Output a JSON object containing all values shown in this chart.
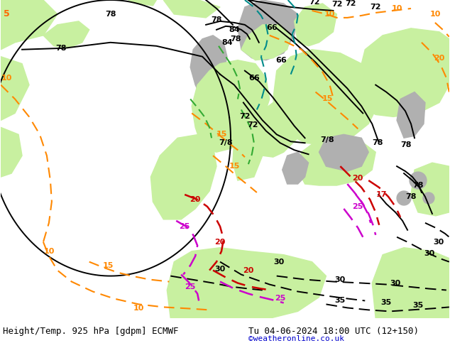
{
  "title_left": "Height/Temp. 925 hPa [gdpm] ECMWF",
  "title_right": "Tu 04-06-2024 18:00 UTC (12+150)",
  "credit": "©weatheronline.co.uk",
  "credit_color": "#0000cc",
  "bg_color": "#e8e8e8",
  "ocean_color": "#e0e0e0",
  "land_green_color": "#c8f0a0",
  "land_gray_color": "#b0b0b0",
  "bottom_bar_color": "#ffffff",
  "fig_width": 6.34,
  "fig_height": 4.9,
  "dpi": 100
}
